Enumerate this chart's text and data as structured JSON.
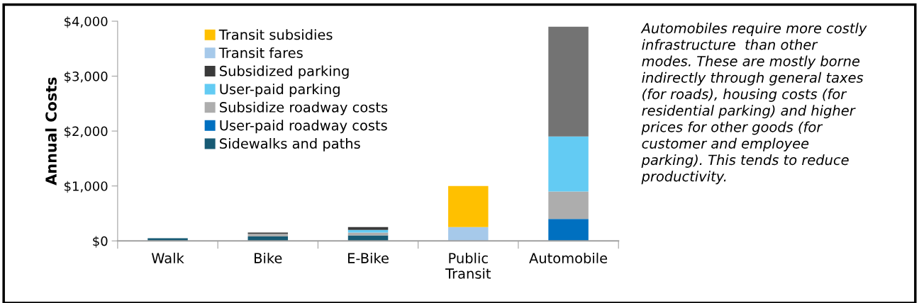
{
  "chart_data": {
    "type": "bar",
    "stacked": true,
    "ylabel": "Annual Costs",
    "categories": [
      "Walk",
      "Bike",
      "E-Bike",
      "Public\nTransit",
      "Automobile"
    ],
    "series": [
      {
        "name": "Sidewalks and paths",
        "color": "#175a74",
        "values": [
          50,
          80,
          100,
          0,
          0
        ]
      },
      {
        "name": "User-paid roadway costs",
        "color": "#0070c0",
        "values": [
          0,
          0,
          0,
          0,
          400
        ]
      },
      {
        "name": "Subsidize roadway costs",
        "color": "#adadad",
        "values": [
          0,
          50,
          50,
          0,
          500
        ]
      },
      {
        "name": "User-paid parking",
        "color": "#63cbf3",
        "values": [
          0,
          0,
          50,
          0,
          1000
        ]
      },
      {
        "name": "Subsidized parking",
        "color": "#3a3a3a",
        "colors": [
          "#3a3a3a",
          "#3a3a3a",
          "#3a3a3a",
          "#3a3a3a",
          "#737373"
        ],
        "values": [
          0,
          20,
          50,
          0,
          2000
        ]
      },
      {
        "name": "Transit fares",
        "color": "#a6c9ea",
        "values": [
          0,
          0,
          0,
          250,
          0
        ]
      },
      {
        "name": "Transit subsidies",
        "color": "#ffc000",
        "values": [
          0,
          0,
          0,
          750,
          0
        ]
      }
    ],
    "ylim": [
      0,
      4000
    ],
    "yticks": [
      {
        "value": 0,
        "label": "$0"
      },
      {
        "value": 1000,
        "label": "$1,000"
      },
      {
        "value": 2000,
        "label": "$2,000"
      },
      {
        "value": 3000,
        "label": "$3,000"
      },
      {
        "value": 4000,
        "label": "$4,000"
      }
    ],
    "grid": false,
    "legend": "top left",
    "annotations": [
      "Automobiles require more costly\ninfrastructure  than other\nmodes. These are mostly borne\nindirectly through general taxes\n(for roads), housing costs (for\nresidential parking) and higher\nprices for other goods (for\ncustomer and employee\nparking). This tends to reduce\nproductivity."
    ]
  }
}
